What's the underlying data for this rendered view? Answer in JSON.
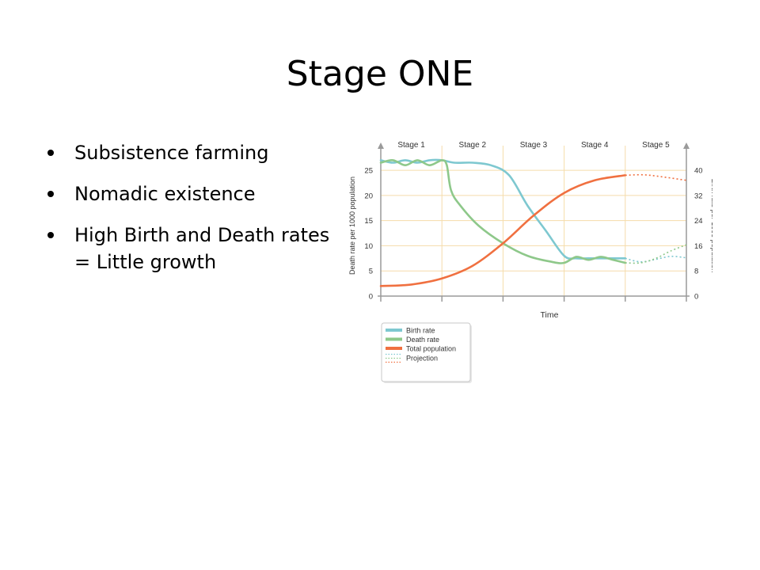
{
  "slide": {
    "title": "Stage ONE",
    "bullets": [
      "Subsistence farming",
      "Nomadic existence",
      "High Birth and Death rates = Little growth"
    ]
  },
  "chart_data": {
    "type": "line",
    "stages": [
      "Stage 1",
      "Stage 2",
      "Stage 3",
      "Stage 4",
      "Stage 5"
    ],
    "xlabel": "Time",
    "ylabel_left": "Death rate per 1000 population",
    "ylabel_right": "Birth rate per 1000 population",
    "left_ticks": [
      0,
      5,
      10,
      15,
      20,
      25
    ],
    "right_ticks": [
      0,
      8,
      16,
      24,
      32,
      40
    ],
    "left_range": [
      0,
      28
    ],
    "right_range": [
      0,
      44.8
    ],
    "x_range": [
      0,
      5
    ],
    "grid": true,
    "legend_placement": "bottom-left",
    "legend": [
      "Birth rate",
      "Death rate",
      "Total population",
      "Projection"
    ],
    "colors": {
      "birth": "#7ec8d0",
      "death": "#8ec88a",
      "population": "#f07040",
      "grid": "#f5dcaa",
      "axis": "#9a9a9a",
      "text": "#333333"
    },
    "series": [
      {
        "name": "Birth rate",
        "color": "#7ec8d0",
        "x": [
          0,
          0.2,
          0.4,
          0.6,
          0.8,
          1.0,
          1.2,
          1.5,
          1.8,
          2.1,
          2.4,
          2.7,
          3.0,
          3.2,
          3.4,
          3.6,
          3.8,
          4.0
        ],
        "y": [
          27,
          26.5,
          27,
          26.5,
          27,
          27,
          26.5,
          26.5,
          26,
          24,
          18,
          13,
          8,
          7.5,
          7.5,
          7.5,
          7.5,
          7.5
        ]
      },
      {
        "name": "Death rate",
        "color": "#8ec88a",
        "x": [
          0,
          0.2,
          0.4,
          0.6,
          0.8,
          1.0,
          1.08,
          1.15,
          1.3,
          1.6,
          2.0,
          2.4,
          2.8,
          3.0,
          3.2,
          3.4,
          3.6,
          3.8,
          4.0
        ],
        "y": [
          26.5,
          27,
          26,
          27,
          26,
          27,
          26,
          21,
          18,
          14,
          10.5,
          8,
          6.8,
          6.6,
          7.8,
          7.2,
          7.8,
          7.2,
          6.6
        ]
      },
      {
        "name": "Total population",
        "color": "#f07040",
        "x": [
          0,
          0.5,
          1.0,
          1.5,
          2.0,
          2.5,
          3.0,
          3.5,
          4.0
        ],
        "y": [
          2,
          2.3,
          3.5,
          6,
          10.5,
          16,
          20.5,
          23,
          24
        ]
      }
    ],
    "projection": [
      {
        "name": "Birth rate",
        "color": "#7ec8d0",
        "x": [
          4.0,
          4.25,
          4.5,
          4.75,
          5.0
        ],
        "y": [
          7.5,
          6.8,
          7.3,
          7.9,
          7.6
        ]
      },
      {
        "name": "Death rate",
        "color": "#8ec88a",
        "x": [
          4.0,
          4.25,
          4.5,
          4.75,
          5.0
        ],
        "y": [
          6.6,
          6.6,
          7.5,
          9.0,
          10.2
        ]
      },
      {
        "name": "Total population",
        "color": "#f07040",
        "x": [
          4.0,
          4.3,
          4.6,
          5.0
        ],
        "y": [
          24,
          24.1,
          23.7,
          23
        ]
      }
    ]
  }
}
